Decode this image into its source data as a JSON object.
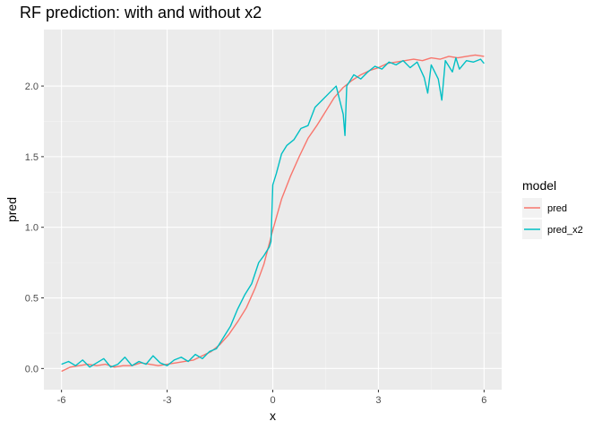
{
  "chart_data": {
    "type": "line",
    "title": "RF prediction: with and without x2",
    "xlabel": "x",
    "ylabel": "pred",
    "xlim": [
      -6.5,
      6.5
    ],
    "ylim": [
      -0.15,
      2.4
    ],
    "x_ticks": [
      -6,
      -3,
      0,
      3,
      6
    ],
    "y_ticks": [
      0.0,
      0.5,
      1.0,
      1.5,
      2.0
    ],
    "x_tick_labels": [
      "-6",
      "-3",
      "0",
      "3",
      "6"
    ],
    "y_tick_labels": [
      "0.0",
      "0.5",
      "1.0",
      "1.5",
      "2.0"
    ],
    "grid": true,
    "panel_background": "#EBEBEB",
    "legend": {
      "title": "model",
      "position": "right",
      "entries": [
        "pred",
        "pred_x2"
      ]
    },
    "series": [
      {
        "name": "pred",
        "color": "#F8766D",
        "x": [
          -6.0,
          -5.75,
          -5.5,
          -5.25,
          -5.0,
          -4.75,
          -4.5,
          -4.25,
          -4.0,
          -3.75,
          -3.5,
          -3.25,
          -3.0,
          -2.75,
          -2.5,
          -2.25,
          -2.0,
          -1.75,
          -1.5,
          -1.25,
          -1.0,
          -0.75,
          -0.5,
          -0.25,
          0.0,
          0.25,
          0.5,
          0.75,
          1.0,
          1.25,
          1.5,
          1.75,
          2.0,
          2.25,
          2.5,
          2.75,
          3.0,
          3.25,
          3.5,
          3.75,
          4.0,
          4.25,
          4.5,
          4.75,
          5.0,
          5.25,
          5.5,
          5.75,
          6.0
        ],
        "y": [
          -0.02,
          0.01,
          0.02,
          0.03,
          0.02,
          0.03,
          0.01,
          0.02,
          0.02,
          0.04,
          0.03,
          0.02,
          0.03,
          0.04,
          0.05,
          0.06,
          0.09,
          0.12,
          0.17,
          0.24,
          0.33,
          0.43,
          0.57,
          0.74,
          0.98,
          1.2,
          1.36,
          1.5,
          1.63,
          1.72,
          1.82,
          1.92,
          1.99,
          2.04,
          2.08,
          2.11,
          2.13,
          2.16,
          2.17,
          2.18,
          2.19,
          2.18,
          2.2,
          2.19,
          2.21,
          2.2,
          2.21,
          2.22,
          2.21
        ]
      },
      {
        "name": "pred_x2",
        "color": "#00BFC4",
        "x": [
          -6.0,
          -5.8,
          -5.6,
          -5.4,
          -5.2,
          -5.0,
          -4.8,
          -4.6,
          -4.4,
          -4.2,
          -4.0,
          -3.8,
          -3.6,
          -3.4,
          -3.2,
          -3.0,
          -2.8,
          -2.6,
          -2.4,
          -2.2,
          -2.0,
          -1.8,
          -1.6,
          -1.4,
          -1.2,
          -1.0,
          -0.8,
          -0.6,
          -0.4,
          -0.25,
          -0.1,
          -0.05,
          0.0,
          0.1,
          0.25,
          0.4,
          0.6,
          0.8,
          1.0,
          1.2,
          1.4,
          1.6,
          1.8,
          2.0,
          2.05,
          2.1,
          2.3,
          2.5,
          2.7,
          2.9,
          3.1,
          3.3,
          3.5,
          3.7,
          3.9,
          4.1,
          4.3,
          4.4,
          4.5,
          4.7,
          4.8,
          4.9,
          5.1,
          5.2,
          5.3,
          5.5,
          5.7,
          5.9,
          6.0
        ],
        "y": [
          0.03,
          0.05,
          0.02,
          0.06,
          0.01,
          0.04,
          0.07,
          0.01,
          0.03,
          0.08,
          0.02,
          0.05,
          0.03,
          0.09,
          0.04,
          0.02,
          0.06,
          0.08,
          0.05,
          0.1,
          0.07,
          0.12,
          0.14,
          0.22,
          0.3,
          0.42,
          0.52,
          0.6,
          0.75,
          0.8,
          0.86,
          0.9,
          1.3,
          1.38,
          1.52,
          1.58,
          1.62,
          1.7,
          1.72,
          1.85,
          1.9,
          1.95,
          2.0,
          1.8,
          1.65,
          2.0,
          2.08,
          2.05,
          2.1,
          2.14,
          2.12,
          2.17,
          2.15,
          2.18,
          2.13,
          2.17,
          2.06,
          1.95,
          2.15,
          2.05,
          1.9,
          2.18,
          2.1,
          2.2,
          2.12,
          2.18,
          2.17,
          2.19,
          2.16
        ]
      }
    ]
  }
}
